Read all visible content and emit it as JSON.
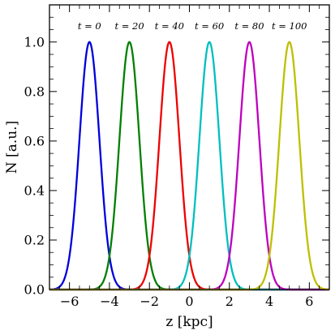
{
  "chart_data": {
    "type": "line",
    "xlabel": "z [kpc]",
    "ylabel": "N [a.u.]",
    "xlim": [
      -7,
      7
    ],
    "ylim": [
      0,
      1.15
    ],
    "x_ticks": [
      -6,
      -4,
      -2,
      0,
      2,
      4,
      6
    ],
    "x_tick_labels": [
      "−6",
      "−4",
      "−2",
      "0",
      "2",
      "4",
      "6"
    ],
    "y_ticks": [
      0,
      0.2,
      0.4,
      0.6,
      0.8,
      1.0
    ],
    "y_tick_labels": [
      "0.0",
      "0.2",
      "0.4",
      "0.6",
      "0.8",
      "1.0"
    ],
    "grid": false,
    "series": [
      {
        "label": "t = 0",
        "center": -5.0,
        "sigma": 0.5,
        "peak": 1.0,
        "color": "#0000dd"
      },
      {
        "label": "t = 20",
        "center": -3.0,
        "sigma": 0.5,
        "peak": 1.0,
        "color": "#008000"
      },
      {
        "label": "t = 40",
        "center": -1.0,
        "sigma": 0.5,
        "peak": 1.0,
        "color": "#ee0000"
      },
      {
        "label": "t = 60",
        "center": 1.0,
        "sigma": 0.5,
        "peak": 1.0,
        "color": "#00bfbf"
      },
      {
        "label": "t = 80",
        "center": 3.0,
        "sigma": 0.5,
        "peak": 1.0,
        "color": "#bf00bf"
      },
      {
        "label": "t = 100",
        "center": 5.0,
        "sigma": 0.5,
        "peak": 1.0,
        "color": "#bfbf00"
      }
    ]
  }
}
